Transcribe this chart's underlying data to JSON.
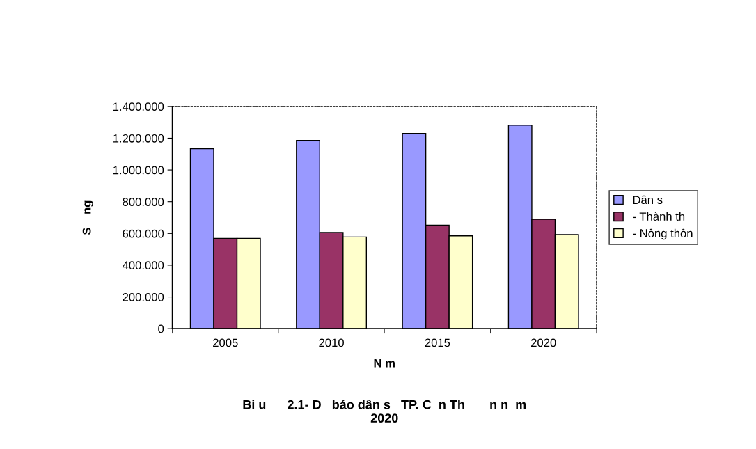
{
  "chart_data": {
    "type": "bar",
    "title": "Bi u      2.1- D   báo dân s   TP. C  n Th       n n  m\n2020",
    "xlabel": "N m",
    "ylabel": "S    ng",
    "categories": [
      "2005",
      "2010",
      "2015",
      "2020"
    ],
    "series": [
      {
        "name": "Dân s",
        "color": "#9999ff",
        "values": [
          1134000,
          1186000,
          1230000,
          1282000
        ]
      },
      {
        "name": "- Thành th",
        "color": "#993366",
        "values": [
          569000,
          606000,
          652000,
          689000
        ]
      },
      {
        "name": "- Nông thôn",
        "color": "#ffffcc",
        "values": [
          569000,
          578000,
          585000,
          593000
        ]
      }
    ],
    "ylim": [
      0,
      1400000
    ],
    "yticks": [
      0,
      {
        "value": 200000,
        "label": "200.000"
      },
      {
        "value": 400000,
        "label": "400.000"
      },
      {
        "value": 600000,
        "label": "600.000"
      },
      {
        "value": 800000,
        "label": "800.000"
      },
      {
        "value": 1000000,
        "label": "1.000.000"
      },
      {
        "value": 1200000,
        "label": "1.200.000"
      },
      {
        "value": 1400000,
        "label": "1.400.000"
      }
    ],
    "grid": false,
    "legend": "right"
  }
}
